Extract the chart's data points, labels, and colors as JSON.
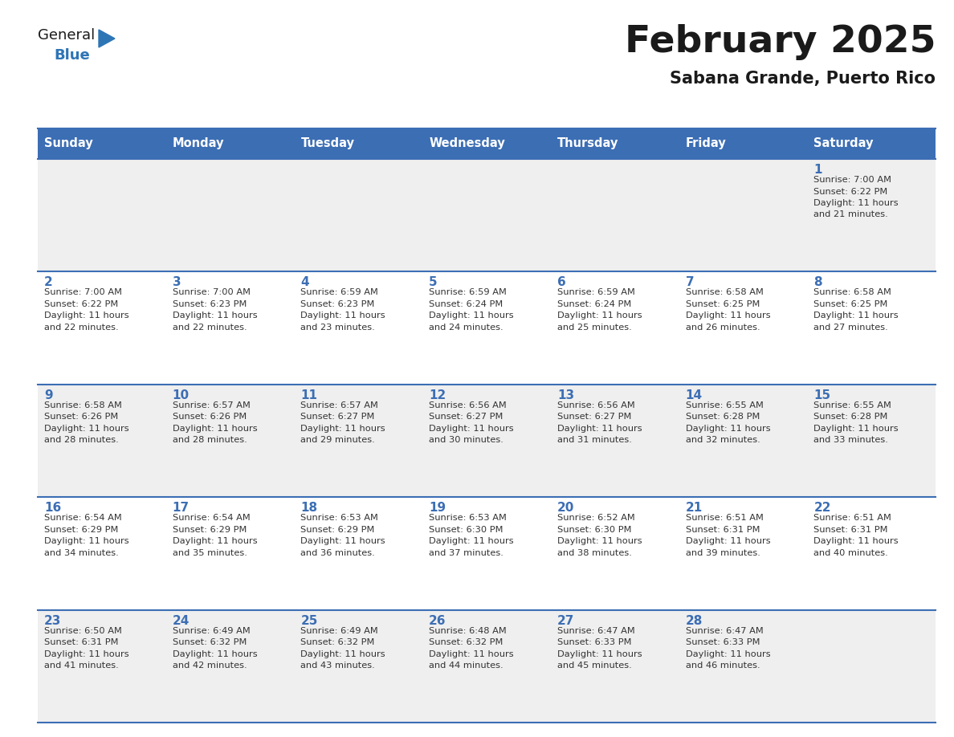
{
  "title": "February 2025",
  "subtitle": "Sabana Grande, Puerto Rico",
  "days_of_week": [
    "Sunday",
    "Monday",
    "Tuesday",
    "Wednesday",
    "Thursday",
    "Friday",
    "Saturday"
  ],
  "header_bg": "#3C6EB4",
  "header_text": "#FFFFFF",
  "cell_bg_odd": "#EFEFEF",
  "cell_bg_even": "#FFFFFF",
  "border_color": "#3C6EB4",
  "title_color": "#1a1a1a",
  "subtitle_color": "#1a1a1a",
  "day_num_color": "#3C6EB4",
  "cell_text_color": "#333333",
  "logo_general_color": "#1a1a1a",
  "logo_blue_color": "#2E75B6",
  "calendar_data": [
    {
      "day": 1,
      "col": 6,
      "row": 0,
      "sunrise": "7:00 AM",
      "sunset": "6:22 PM",
      "daylight_hours": 11,
      "daylight_minutes": 21
    },
    {
      "day": 2,
      "col": 0,
      "row": 1,
      "sunrise": "7:00 AM",
      "sunset": "6:22 PM",
      "daylight_hours": 11,
      "daylight_minutes": 22
    },
    {
      "day": 3,
      "col": 1,
      "row": 1,
      "sunrise": "7:00 AM",
      "sunset": "6:23 PM",
      "daylight_hours": 11,
      "daylight_minutes": 22
    },
    {
      "day": 4,
      "col": 2,
      "row": 1,
      "sunrise": "6:59 AM",
      "sunset": "6:23 PM",
      "daylight_hours": 11,
      "daylight_minutes": 23
    },
    {
      "day": 5,
      "col": 3,
      "row": 1,
      "sunrise": "6:59 AM",
      "sunset": "6:24 PM",
      "daylight_hours": 11,
      "daylight_minutes": 24
    },
    {
      "day": 6,
      "col": 4,
      "row": 1,
      "sunrise": "6:59 AM",
      "sunset": "6:24 PM",
      "daylight_hours": 11,
      "daylight_minutes": 25
    },
    {
      "day": 7,
      "col": 5,
      "row": 1,
      "sunrise": "6:58 AM",
      "sunset": "6:25 PM",
      "daylight_hours": 11,
      "daylight_minutes": 26
    },
    {
      "day": 8,
      "col": 6,
      "row": 1,
      "sunrise": "6:58 AM",
      "sunset": "6:25 PM",
      "daylight_hours": 11,
      "daylight_minutes": 27
    },
    {
      "day": 9,
      "col": 0,
      "row": 2,
      "sunrise": "6:58 AM",
      "sunset": "6:26 PM",
      "daylight_hours": 11,
      "daylight_minutes": 28
    },
    {
      "day": 10,
      "col": 1,
      "row": 2,
      "sunrise": "6:57 AM",
      "sunset": "6:26 PM",
      "daylight_hours": 11,
      "daylight_minutes": 28
    },
    {
      "day": 11,
      "col": 2,
      "row": 2,
      "sunrise": "6:57 AM",
      "sunset": "6:27 PM",
      "daylight_hours": 11,
      "daylight_minutes": 29
    },
    {
      "day": 12,
      "col": 3,
      "row": 2,
      "sunrise": "6:56 AM",
      "sunset": "6:27 PM",
      "daylight_hours": 11,
      "daylight_minutes": 30
    },
    {
      "day": 13,
      "col": 4,
      "row": 2,
      "sunrise": "6:56 AM",
      "sunset": "6:27 PM",
      "daylight_hours": 11,
      "daylight_minutes": 31
    },
    {
      "day": 14,
      "col": 5,
      "row": 2,
      "sunrise": "6:55 AM",
      "sunset": "6:28 PM",
      "daylight_hours": 11,
      "daylight_minutes": 32
    },
    {
      "day": 15,
      "col": 6,
      "row": 2,
      "sunrise": "6:55 AM",
      "sunset": "6:28 PM",
      "daylight_hours": 11,
      "daylight_minutes": 33
    },
    {
      "day": 16,
      "col": 0,
      "row": 3,
      "sunrise": "6:54 AM",
      "sunset": "6:29 PM",
      "daylight_hours": 11,
      "daylight_minutes": 34
    },
    {
      "day": 17,
      "col": 1,
      "row": 3,
      "sunrise": "6:54 AM",
      "sunset": "6:29 PM",
      "daylight_hours": 11,
      "daylight_minutes": 35
    },
    {
      "day": 18,
      "col": 2,
      "row": 3,
      "sunrise": "6:53 AM",
      "sunset": "6:29 PM",
      "daylight_hours": 11,
      "daylight_minutes": 36
    },
    {
      "day": 19,
      "col": 3,
      "row": 3,
      "sunrise": "6:53 AM",
      "sunset": "6:30 PM",
      "daylight_hours": 11,
      "daylight_minutes": 37
    },
    {
      "day": 20,
      "col": 4,
      "row": 3,
      "sunrise": "6:52 AM",
      "sunset": "6:30 PM",
      "daylight_hours": 11,
      "daylight_minutes": 38
    },
    {
      "day": 21,
      "col": 5,
      "row": 3,
      "sunrise": "6:51 AM",
      "sunset": "6:31 PM",
      "daylight_hours": 11,
      "daylight_minutes": 39
    },
    {
      "day": 22,
      "col": 6,
      "row": 3,
      "sunrise": "6:51 AM",
      "sunset": "6:31 PM",
      "daylight_hours": 11,
      "daylight_minutes": 40
    },
    {
      "day": 23,
      "col": 0,
      "row": 4,
      "sunrise": "6:50 AM",
      "sunset": "6:31 PM",
      "daylight_hours": 11,
      "daylight_minutes": 41
    },
    {
      "day": 24,
      "col": 1,
      "row": 4,
      "sunrise": "6:49 AM",
      "sunset": "6:32 PM",
      "daylight_hours": 11,
      "daylight_minutes": 42
    },
    {
      "day": 25,
      "col": 2,
      "row": 4,
      "sunrise": "6:49 AM",
      "sunset": "6:32 PM",
      "daylight_hours": 11,
      "daylight_minutes": 43
    },
    {
      "day": 26,
      "col": 3,
      "row": 4,
      "sunrise": "6:48 AM",
      "sunset": "6:32 PM",
      "daylight_hours": 11,
      "daylight_minutes": 44
    },
    {
      "day": 27,
      "col": 4,
      "row": 4,
      "sunrise": "6:47 AM",
      "sunset": "6:33 PM",
      "daylight_hours": 11,
      "daylight_minutes": 45
    },
    {
      "day": 28,
      "col": 5,
      "row": 4,
      "sunrise": "6:47 AM",
      "sunset": "6:33 PM",
      "daylight_hours": 11,
      "daylight_minutes": 46
    }
  ]
}
